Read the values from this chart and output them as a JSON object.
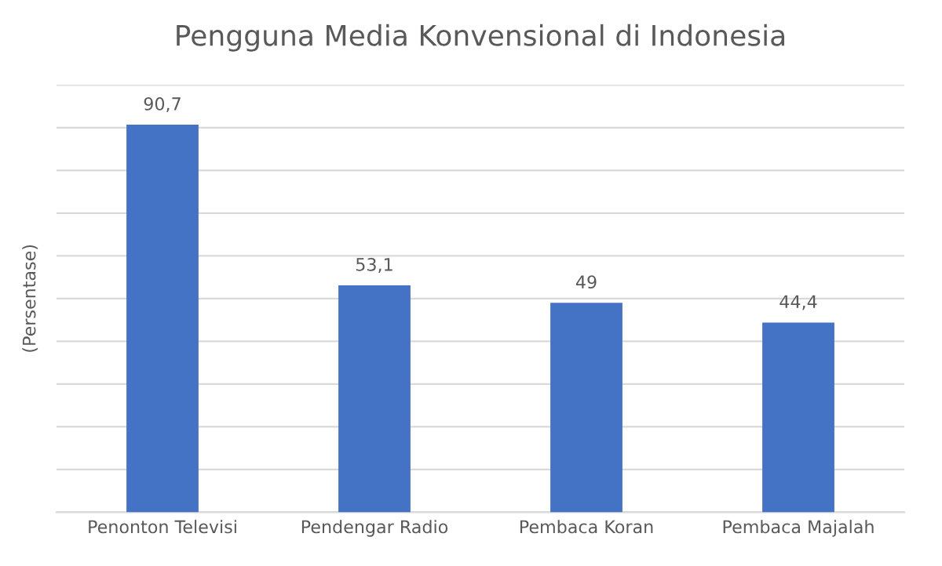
{
  "chart_data": {
    "type": "bar",
    "title": "Pengguna Media Konvensional di Indonesia",
    "ylabel": "(Persentase)",
    "categories": [
      "Penonton Televisi",
      "Pendengar Radio",
      "Pembaca Koran",
      "Pembaca Majalah"
    ],
    "values": [
      90.7,
      53.1,
      49,
      44.4
    ],
    "value_labels": [
      "90,7",
      "53,1",
      "49",
      "44,4"
    ],
    "color": "#4472c4",
    "ylim": [
      0,
      100
    ],
    "yticks": [
      {
        "value": 0,
        "label": null
      },
      {
        "value": 10,
        "label": null
      },
      {
        "value": 20,
        "label": null
      },
      {
        "value": 30,
        "label": null
      },
      {
        "value": 40,
        "label": null
      },
      {
        "value": 50,
        "label": null
      },
      {
        "value": 60,
        "label": null
      },
      {
        "value": 70,
        "label": null
      },
      {
        "value": 80,
        "label": null
      },
      {
        "value": 90,
        "label": null
      },
      {
        "value": 100,
        "label": null
      }
    ],
    "grid": "y",
    "tick_labels": "x"
  }
}
